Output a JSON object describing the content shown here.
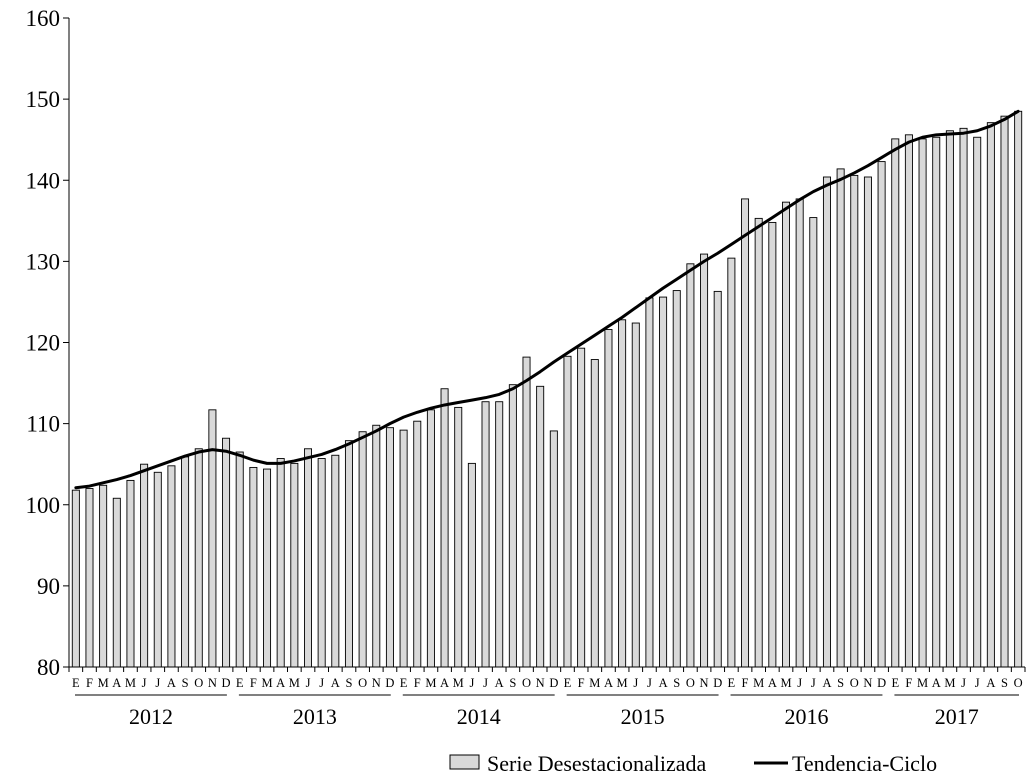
{
  "chart_data": {
    "type": "bar",
    "title": "",
    "xlabel": "",
    "ylabel": "",
    "ylim": [
      80,
      160
    ],
    "yticks": [
      80,
      90,
      100,
      110,
      120,
      130,
      140,
      150,
      160
    ],
    "grid": false,
    "legend_position": "bottom-center",
    "month_letters": [
      "E",
      "F",
      "M",
      "A",
      "M",
      "J",
      "J",
      "A",
      "S",
      "O",
      "N",
      "D"
    ],
    "years": [
      {
        "label": "2012",
        "months": 12
      },
      {
        "label": "2013",
        "months": 12
      },
      {
        "label": "2014",
        "months": 12
      },
      {
        "label": "2015",
        "months": 12
      },
      {
        "label": "2016",
        "months": 12
      },
      {
        "label": "2017",
        "months": 10
      }
    ],
    "series": [
      {
        "name": "Serie Desestacionalizada",
        "type": "bar",
        "color": "#d9d9d9",
        "values": [
          101.8,
          102.0,
          102.4,
          100.8,
          103.0,
          105.0,
          104.0,
          104.8,
          105.9,
          106.9,
          111.7,
          108.2,
          106.5,
          104.6,
          104.4,
          105.7,
          105.1,
          106.9,
          105.7,
          106.1,
          107.9,
          109.0,
          109.8,
          109.5,
          109.2,
          110.3,
          111.7,
          114.3,
          112.0,
          105.1,
          112.7,
          112.7,
          114.8,
          118.2,
          114.6,
          109.1,
          118.3,
          119.3,
          117.9,
          121.6,
          122.8,
          122.4,
          125.5,
          125.6,
          126.4,
          129.7,
          130.9,
          126.3,
          130.4,
          137.7,
          135.3,
          134.8,
          137.3,
          137.7,
          135.4,
          140.4,
          141.4,
          140.6,
          140.4,
          142.3,
          145.1,
          145.6,
          145.1,
          145.3,
          146.1,
          146.4,
          145.3,
          147.1,
          147.9,
          148.5
        ]
      },
      {
        "name": "Tendencia-Ciclo",
        "type": "line",
        "color": "#000000",
        "values": [
          102.1,
          102.3,
          102.7,
          103.1,
          103.6,
          104.2,
          104.8,
          105.4,
          106.0,
          106.5,
          106.8,
          106.6,
          106.1,
          105.5,
          105.1,
          105.1,
          105.4,
          105.8,
          106.2,
          106.8,
          107.5,
          108.3,
          109.1,
          110.0,
          110.8,
          111.4,
          111.9,
          112.3,
          112.6,
          112.9,
          113.2,
          113.6,
          114.3,
          115.3,
          116.4,
          117.6,
          118.7,
          119.8,
          120.9,
          122.0,
          123.1,
          124.3,
          125.5,
          126.7,
          127.8,
          128.9,
          130.0,
          131.0,
          132.1,
          133.2,
          134.3,
          135.4,
          136.5,
          137.6,
          138.6,
          139.4,
          140.1,
          140.9,
          141.8,
          142.8,
          143.8,
          144.7,
          145.3,
          145.6,
          145.7,
          145.8,
          146.1,
          146.7,
          147.5,
          148.5
        ]
      }
    ]
  }
}
